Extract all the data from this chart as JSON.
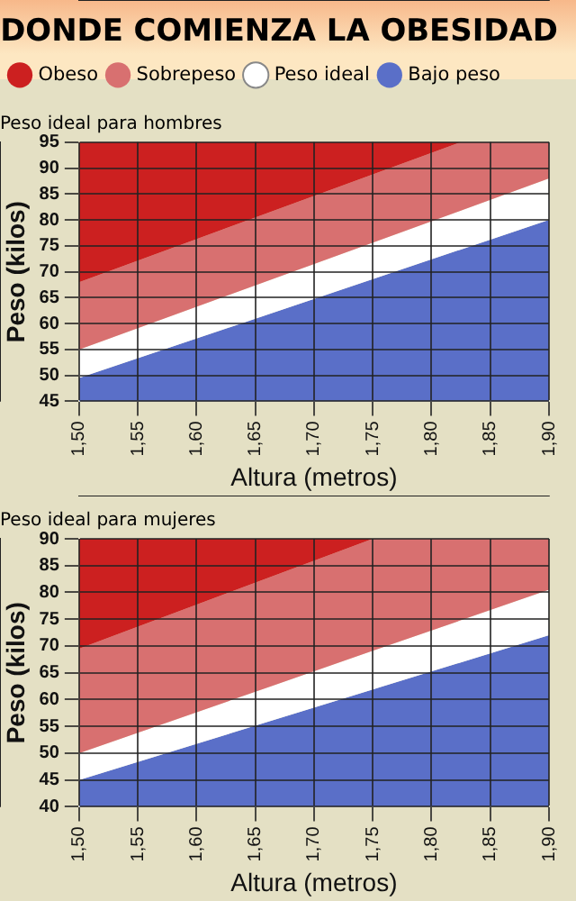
{
  "chart_data": [
    {
      "type": "area",
      "title": "DONDE COMIENZA LA OBESIDAD",
      "subtitle": "Peso ideal para hombres",
      "xlabel": "Altura (metros)",
      "ylabel": "Peso (kilos)",
      "legend": "top",
      "grid": true,
      "x": [
        1.5,
        1.825,
        1.9
      ],
      "series": [
        {
          "name": "Obeso",
          "color": "#cc2020",
          "values": [
            95,
            95,
            95
          ]
        },
        {
          "name": "Sobrepeso",
          "color": "#d87070",
          "values": [
            68,
            95,
            95
          ]
        },
        {
          "name": "Peso ideal",
          "color": "#ffffff",
          "values": [
            55,
            81.8,
            88
          ]
        },
        {
          "name": "Bajo peso",
          "color": "#5a6fc8",
          "values": [
            49.5,
            74.3,
            80
          ]
        }
      ],
      "xlim": [
        1.5,
        1.9
      ],
      "xticks": [
        {
          "value": 1.5,
          "label": "1,50"
        },
        {
          "value": 1.55,
          "label": "1,55"
        },
        {
          "value": 1.6,
          "label": "1,60"
        },
        {
          "value": 1.65,
          "label": "1,65"
        },
        {
          "value": 1.7,
          "label": "1,70"
        },
        {
          "value": 1.75,
          "label": "1,75"
        },
        {
          "value": 1.8,
          "label": "1,80"
        },
        {
          "value": 1.85,
          "label": "1,85"
        },
        {
          "value": 1.9,
          "label": "1,90"
        }
      ],
      "ylim": [
        45,
        95
      ],
      "yticks": [
        45,
        50,
        55,
        60,
        65,
        70,
        75,
        80,
        85,
        90,
        95
      ]
    },
    {
      "type": "area",
      "subtitle": "Peso ideal para mujeres",
      "xlabel": "Altura (metros)",
      "ylabel": "Peso (kilos)",
      "grid": true,
      "x": [
        1.5,
        1.75,
        1.9
      ],
      "series": [
        {
          "color": "#cc2020",
          "values": [
            90,
            90,
            90
          ]
        },
        {
          "color": "#d87070",
          "values": [
            69.5,
            90,
            90
          ]
        },
        {
          "color": "#ffffff",
          "values": [
            50,
            69.1,
            80.5
          ]
        },
        {
          "color": "#5a6fc8",
          "values": [
            45,
            61.9,
            72
          ]
        }
      ],
      "xlim": [
        1.5,
        1.9
      ],
      "xticks": [
        {
          "value": 1.5,
          "label": "1,50"
        },
        {
          "value": 1.55,
          "label": "1,55"
        },
        {
          "value": 1.6,
          "label": "1,60"
        },
        {
          "value": 1.65,
          "label": "1,65"
        },
        {
          "value": 1.7,
          "label": "1,70"
        },
        {
          "value": 1.75,
          "label": "1,75"
        },
        {
          "value": 1.8,
          "label": "1,80"
        },
        {
          "value": 1.85,
          "label": "1,85"
        },
        {
          "value": 1.9,
          "label": "1,90"
        }
      ],
      "ylim": [
        40,
        90
      ],
      "yticks": [
        40,
        45,
        50,
        55,
        60,
        65,
        70,
        75,
        80,
        85,
        90
      ]
    }
  ]
}
